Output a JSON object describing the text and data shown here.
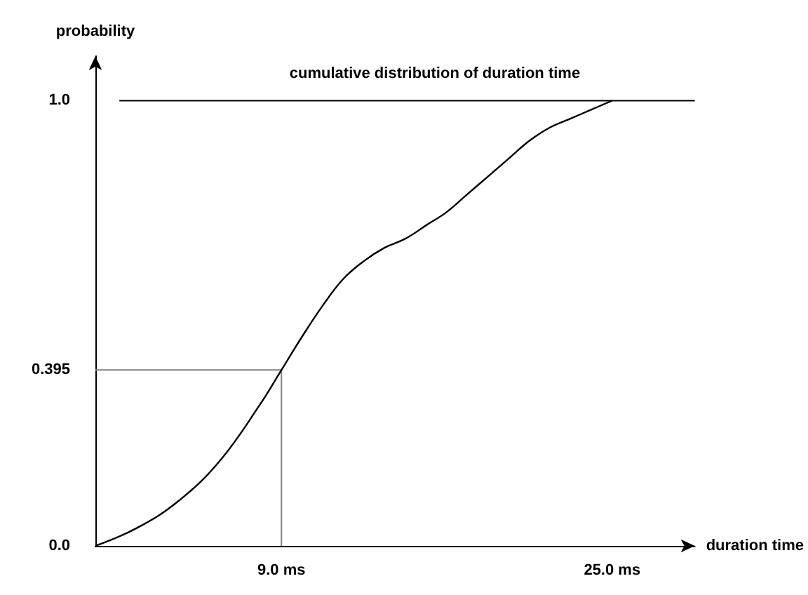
{
  "chart_data": {
    "type": "line",
    "title": "cumulative distribution of duration time",
    "xlabel": "duration time",
    "ylabel": "probability",
    "x": [
      0,
      2,
      4,
      6,
      8,
      9,
      10,
      11,
      12,
      13,
      14,
      15,
      16,
      17,
      18,
      19,
      20,
      21,
      22,
      23,
      24,
      25
    ],
    "series": [
      {
        "color": "#000000",
        "values": [
          0,
          0.04,
          0.1,
          0.19,
          0.32,
          0.395,
          0.47,
          0.54,
          0.6,
          0.64,
          0.67,
          0.69,
          0.72,
          0.75,
          0.79,
          0.83,
          0.87,
          0.91,
          0.94,
          0.96,
          0.98,
          1.0
        ]
      }
    ],
    "xlim": [
      0,
      29
    ],
    "ylim": [
      0,
      1.1
    ],
    "xticks": [
      {
        "value": 9,
        "label": "9.0 ms"
      },
      {
        "value": 25,
        "label": "25.0 ms"
      }
    ],
    "yticks": [
      {
        "value": 0,
        "label": "0.0"
      },
      0.395,
      {
        "value": 1,
        "label": "1.0"
      }
    ],
    "ref_lines": [
      {
        "axis": "y",
        "value": 0.395,
        "color": "#808080"
      },
      {
        "axis": "x",
        "value": 9,
        "color": "#808080"
      },
      {
        "axis": "y",
        "value": 1.0,
        "color": "#000000"
      }
    ],
    "grid": false,
    "marker": "none",
    "line_style": "solid"
  }
}
